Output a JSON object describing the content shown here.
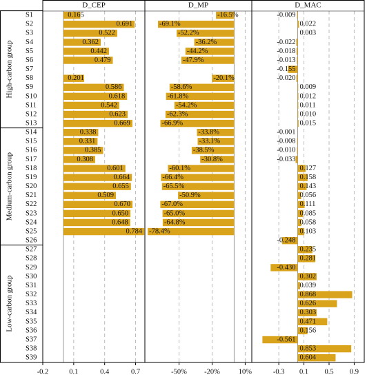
{
  "chart_data": {
    "type": "bar",
    "orientation": "horizontal",
    "grid": true,
    "groups": [
      {
        "name": "High-carbon group",
        "categories": [
          "S1",
          "S2",
          "S3",
          "S4",
          "S5",
          "S6",
          "S7",
          "S8",
          "S9",
          "S10",
          "S11",
          "S12",
          "S13"
        ]
      },
      {
        "name": "Medium-carbon group",
        "categories": [
          "S14",
          "S15",
          "S16",
          "S17",
          "S18",
          "S19",
          "S20",
          "S21",
          "S22",
          "S23",
          "S24",
          "S25",
          "S26"
        ]
      },
      {
        "name": "Low-carbon group",
        "categories": [
          "S27",
          "S28",
          "S29",
          "S30",
          "S31",
          "S32",
          "S33",
          "S34",
          "S35",
          "S36",
          "S37",
          "S38",
          "S39"
        ]
      }
    ],
    "series": [
      {
        "name": "D_CEP",
        "color": "#daa31c",
        "values": [
          0.165,
          0.691,
          0.522,
          0.362,
          0.442,
          0.479,
          null,
          0.201,
          0.586,
          0.618,
          0.542,
          0.623,
          0.669,
          0.338,
          0.331,
          0.385,
          0.308,
          0.601,
          0.664,
          0.655,
          0.509,
          0.67,
          0.65,
          0.648,
          0.784,
          null,
          null,
          null,
          null,
          null,
          null,
          null,
          null,
          null,
          null,
          null,
          null,
          null,
          null
        ],
        "value_labels": [
          "0.165",
          "0.691",
          "0.522",
          "0.362",
          "0.442",
          "0.479",
          null,
          "0.201",
          "0.586",
          "0.618",
          "0.542",
          "0.623",
          "0.669",
          "0.338",
          "0.331",
          "0.385",
          "0.308",
          "0.601",
          "0.664",
          "0.655",
          "0.509",
          "0.670",
          "0.650",
          "0.648",
          "0.784",
          null,
          null,
          null,
          null,
          null,
          null,
          null,
          null,
          null,
          null,
          null,
          null,
          null,
          null
        ],
        "xlim": [
          -0.2,
          0.79
        ],
        "xticks": [
          -0.2,
          0.1,
          0.4,
          0.7
        ]
      },
      {
        "name": "D_MP",
        "color": "#daa31c",
        "values": [
          -16.5,
          -69.1,
          -52.2,
          -36.2,
          -44.2,
          -47.9,
          null,
          -20.1,
          -58.6,
          -61.8,
          -54.2,
          -62.3,
          -66.9,
          -33.8,
          -33.1,
          -38.5,
          -30.8,
          -60.1,
          -66.4,
          -65.5,
          -50.9,
          -67.0,
          -65.0,
          -64.8,
          -78.4,
          null,
          null,
          null,
          null,
          null,
          null,
          null,
          null,
          null,
          null,
          null,
          null,
          null,
          null
        ],
        "value_labels": [
          "-16.5%",
          "-69.1%",
          "-52.2%",
          "-36.2%",
          "-44.2%",
          "-47.9%",
          null,
          "-20.1%",
          "-58.6%",
          "-61.8%",
          "-54.2%",
          "-62.3%",
          "-66.9%",
          "-33.8%",
          "-33.1%",
          "-38.5%",
          "-30.8%",
          "-60.1%",
          "-66.4%",
          "-65.5%",
          "-50.9%",
          "-67.0%",
          "-65.0%",
          "-64.8%",
          "-78.4%",
          null,
          null,
          null,
          null,
          null,
          null,
          null,
          null,
          null,
          null,
          null,
          null,
          null,
          null
        ],
        "xlim": [
          -81,
          16
        ],
        "xticks": [
          {
            "value": -50,
            "label": "-50%"
          },
          {
            "value": -20,
            "label": "-20%"
          },
          {
            "value": 10,
            "label": "10%"
          }
        ]
      },
      {
        "name": "D_MAC",
        "color": "#daa31c",
        "values": [
          -0.009,
          0.022,
          0.003,
          -0.022,
          -0.018,
          -0.013,
          -0.155,
          -0.02,
          0.009,
          0.012,
          0.011,
          0.01,
          0.015,
          -0.001,
          -0.008,
          -0.01,
          -0.033,
          0.127,
          0.158,
          0.143,
          0.056,
          0.111,
          0.085,
          0.058,
          0.103,
          -0.248,
          0.235,
          0.281,
          -0.43,
          0.302,
          0.039,
          0.868,
          0.626,
          0.303,
          0.471,
          0.156,
          -0.561,
          0.853,
          0.604
        ],
        "value_labels": [
          "-0.009",
          "0.022",
          "0.003",
          "-0.022",
          "-0.018",
          "-0.013",
          "-0.155",
          "-0.020",
          "0.009",
          "0.012",
          "0.011",
          "0.010",
          "0.015",
          "-0.001",
          "-0.008",
          "-0.010",
          "-0.033",
          "0.127",
          "0.158",
          "0.143",
          "0.056",
          "0.111",
          "0.085",
          "0.058",
          "0.103",
          "-0.248",
          "0.235",
          "0.281",
          "-0.430",
          "0.302",
          "0.039",
          "0.868",
          "0.626",
          "0.303",
          "0.471",
          "0.156",
          "-0.561",
          "0.853",
          "0.604"
        ],
        "xlim": [
          -0.73,
          1.06
        ],
        "xticks": [
          -0.3,
          0.1,
          0.5,
          0.9
        ]
      }
    ]
  }
}
